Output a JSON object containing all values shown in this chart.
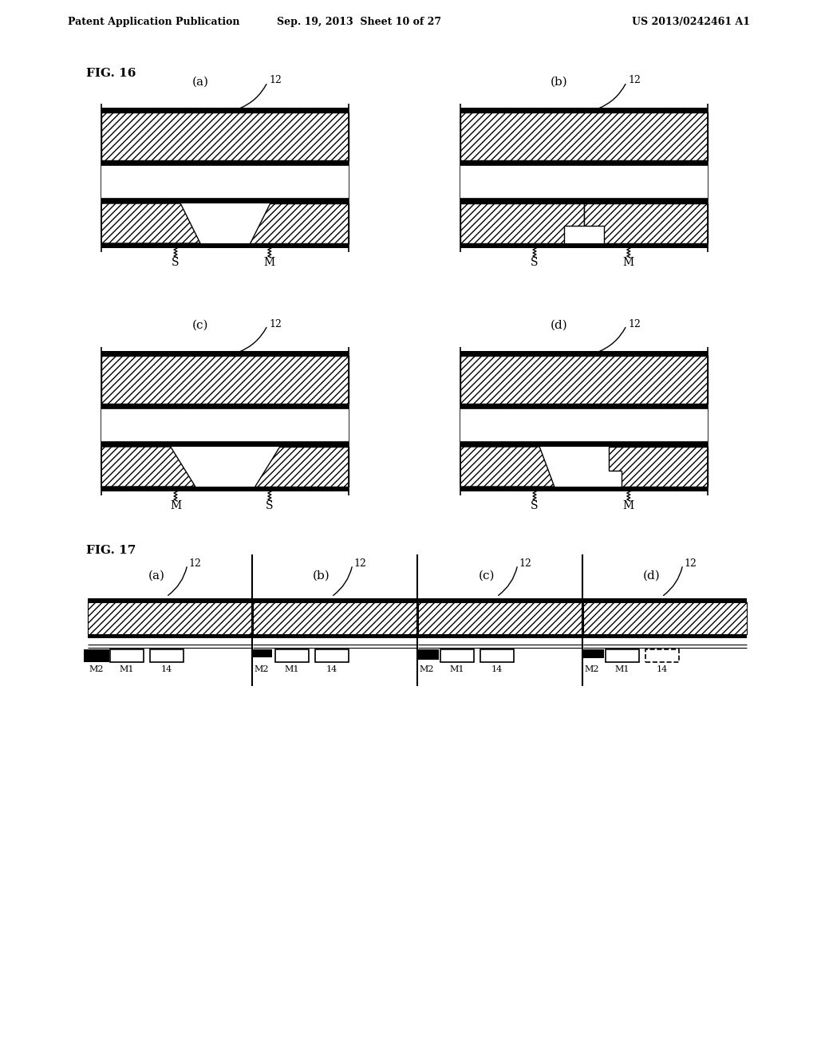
{
  "header_left": "Patent Application Publication",
  "header_mid": "Sep. 19, 2013  Sheet 10 of 27",
  "header_right": "US 2013/0242461 A1",
  "fig16_label": "FIG. 16",
  "fig17_label": "FIG. 17",
  "background": "#ffffff"
}
